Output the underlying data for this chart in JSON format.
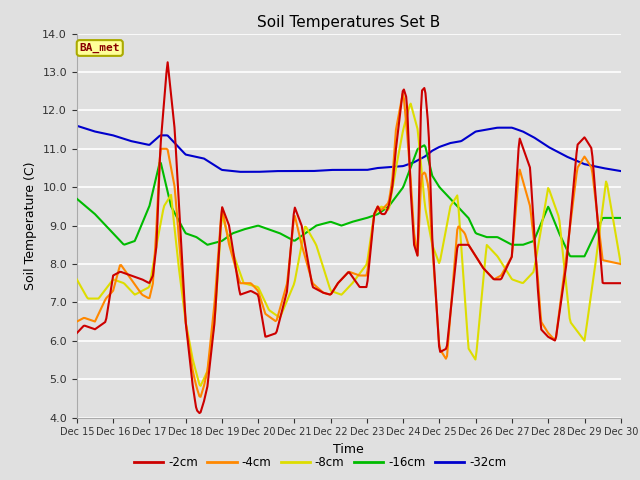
{
  "title": "Soil Temperatures Set B",
  "xlabel": "Time",
  "ylabel": "Soil Temperature (C)",
  "ylim": [
    4.0,
    14.0
  ],
  "yticks": [
    4.0,
    5.0,
    6.0,
    7.0,
    8.0,
    9.0,
    10.0,
    11.0,
    12.0,
    13.0,
    14.0
  ],
  "xtick_labels": [
    "Dec 15",
    "Dec 16",
    "Dec 17",
    "Dec 18",
    "Dec 19",
    "Dec 20",
    "Dec 21",
    "Dec 22",
    "Dec 23",
    "Dec 24",
    "Dec 25",
    "Dec 26",
    "Dec 27",
    "Dec 28",
    "Dec 29",
    "Dec 30"
  ],
  "legend_label": "BA_met",
  "series_labels": [
    "-2cm",
    "-4cm",
    "-8cm",
    "-16cm",
    "-32cm"
  ],
  "series_colors": [
    "#cc0000",
    "#ff8800",
    "#dddd00",
    "#00bb00",
    "#0000cc"
  ],
  "background_color": "#e0e0e0",
  "plot_bg_color": "#e0e0e0",
  "grid_color": "#ffffff",
  "title_fontsize": 11,
  "axis_label_fontsize": 9,
  "tick_fontsize": 8
}
